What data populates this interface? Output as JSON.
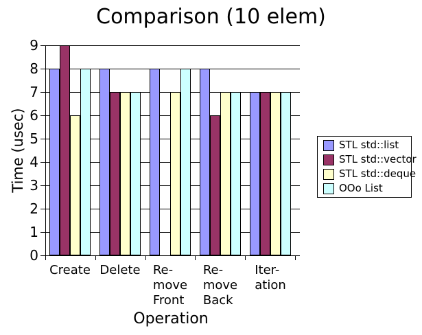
{
  "chart_data": {
    "type": "bar",
    "title": "Comparison (10 elem)",
    "xlabel": "Operation",
    "ylabel": "Time (usec)",
    "categories": [
      "Create",
      "Delete",
      "Re-move Front",
      "Re-move Back",
      "Iter-ation"
    ],
    "category_label_lines": [
      [
        "Create"
      ],
      [
        "Delete"
      ],
      [
        "Re-",
        "move",
        "Front"
      ],
      [
        "Re-",
        "move",
        "Back"
      ],
      [
        "Iter-",
        "ation"
      ]
    ],
    "series": [
      {
        "name": "STL std::list",
        "color": "#9999FF",
        "values": [
          8,
          8,
          8,
          8,
          7
        ]
      },
      {
        "name": "STL std::vector",
        "color": "#993366",
        "values": [
          9,
          7,
          0,
          6,
          7
        ]
      },
      {
        "name": "STL std::deque",
        "color": "#FFFFCC",
        "values": [
          6,
          7,
          7,
          7,
          7
        ]
      },
      {
        "name": "OOo List",
        "color": "#CCFFFF",
        "values": [
          8,
          7,
          8,
          7,
          7
        ]
      }
    ],
    "ylim": [
      0,
      9
    ],
    "yticks": [
      0,
      1,
      2,
      3,
      4,
      5,
      6,
      7,
      8,
      9
    ],
    "grid": "horizontal",
    "legend_position": "right",
    "background": "#FFFFFF",
    "axis_color": "#000000"
  }
}
